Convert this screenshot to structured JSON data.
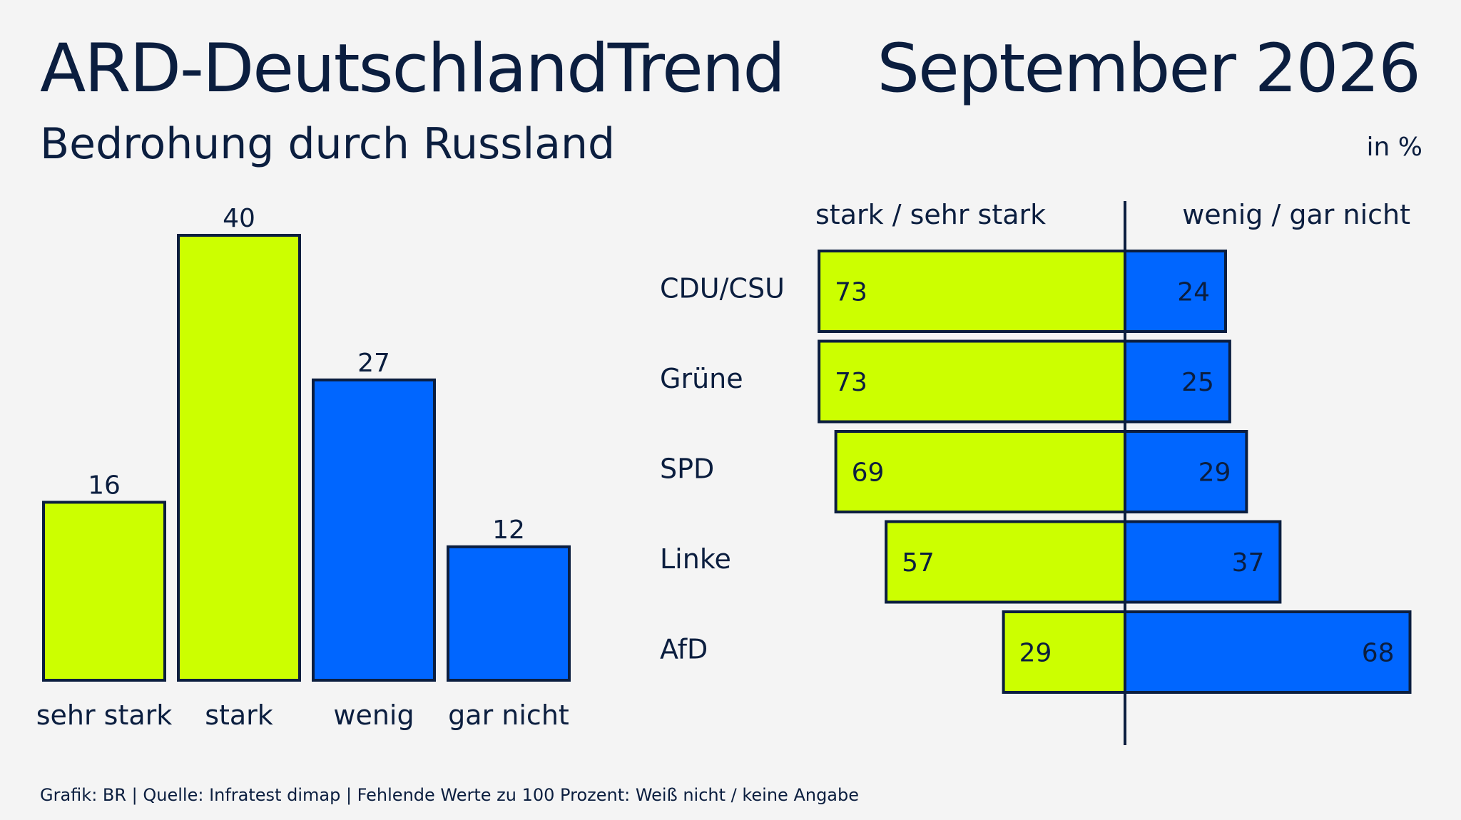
{
  "header": {
    "title": "ARD-DeutschlandTrend",
    "date": "September 2026",
    "subtitle": "Bedrohung durch Russland",
    "unit": "in %"
  },
  "footer": {
    "source": "Grafik: BR | Quelle: Infratest dimap | Fehlende Werte zu 100 Prozent: Weiß nicht / keine Angabe"
  },
  "colors": {
    "yellow": "#ccff00",
    "blue": "#0066ff",
    "navy": "#0b1e3f",
    "background": "#f4f4f4"
  },
  "chart_data": [
    {
      "type": "bar",
      "categories": [
        "sehr stark",
        "stark",
        "wenig",
        "gar nicht"
      ],
      "values": [
        16,
        40,
        27,
        12
      ],
      "bar_colors": [
        "yellow",
        "yellow",
        "blue",
        "blue"
      ],
      "ylim": [
        0,
        40
      ],
      "grid": false
    },
    {
      "type": "bar",
      "orientation": "horizontal-diverging",
      "categories": [
        "CDU/CSU",
        "Grüne",
        "SPD",
        "Linke",
        "AfD"
      ],
      "series": [
        {
          "name": "stark / sehr stark",
          "values": [
            73,
            73,
            69,
            57,
            29
          ],
          "color": "yellow"
        },
        {
          "name": "wenig / gar nicht",
          "values": [
            24,
            25,
            29,
            37,
            68
          ],
          "color": "blue"
        }
      ],
      "legend": "top",
      "grid": false
    }
  ]
}
